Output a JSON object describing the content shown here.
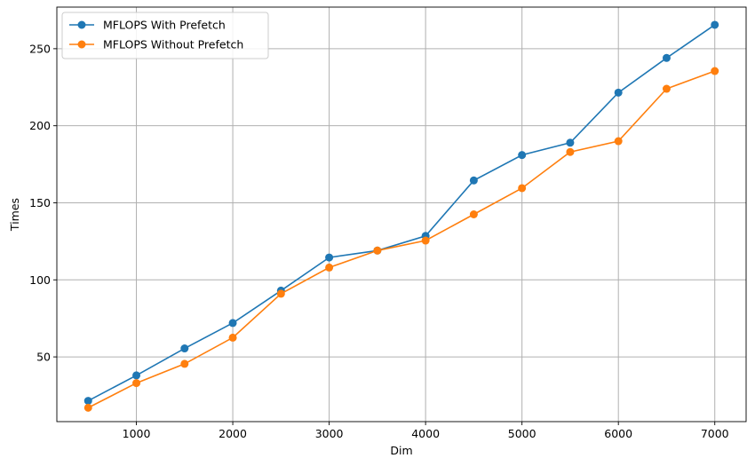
{
  "chart_data": {
    "type": "line",
    "xlabel": "Dim",
    "ylabel": "Times",
    "xlim": [
      175,
      7325
    ],
    "ylim": [
      8,
      277
    ],
    "xticks": [
      1000,
      2000,
      3000,
      4000,
      5000,
      6000,
      7000
    ],
    "yticks": [
      50,
      100,
      150,
      200,
      250
    ],
    "grid": true,
    "legend_position": "top-left",
    "x": [
      500,
      1000,
      1500,
      2000,
      2500,
      3000,
      3500,
      4000,
      4500,
      5000,
      5500,
      6000,
      6500,
      7000
    ],
    "series": [
      {
        "name": "MFLOPS With Prefetch",
        "color": "#1f77b4",
        "values": [
          21.5,
          38,
          55.5,
          72,
          93,
          114.5,
          119,
          128.5,
          164.5,
          181,
          189,
          221.5,
          244,
          265.5
        ]
      },
      {
        "name": "MFLOPS Without Prefetch",
        "color": "#ff7f0e",
        "values": [
          17,
          33,
          45.5,
          62.5,
          91,
          108,
          119,
          125.5,
          142.5,
          159.5,
          183,
          190,
          224,
          235.5
        ]
      }
    ]
  }
}
